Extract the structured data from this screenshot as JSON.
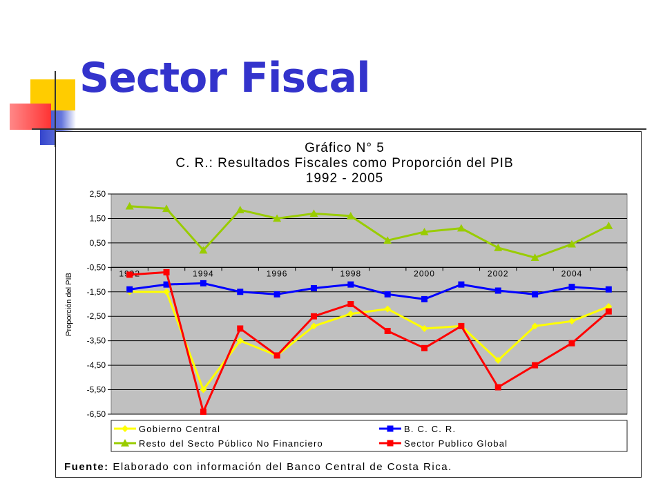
{
  "slide": {
    "title": "Sector Fiscal"
  },
  "chart_data": {
    "type": "line",
    "title": "Gráfico N° 5",
    "subtitle": "C. R.: Resultados Fiscales como Proporción del PIB",
    "period": "1992 - 2005",
    "ylabel": "Proporción del PIB",
    "xlabel": "",
    "ylim": [
      -6.5,
      2.5
    ],
    "yticks": [
      "2,50",
      "1,50",
      "0,50",
      "-0,50",
      "-1,50",
      "-2,50",
      "-3,50",
      "-4,50",
      "-5,50",
      "-6,50"
    ],
    "x": [
      1992,
      1993,
      1994,
      1995,
      1996,
      1997,
      1998,
      1999,
      2000,
      2001,
      2002,
      2003,
      2004,
      2005
    ],
    "xticks": [
      "1992",
      "1994",
      "1996",
      "1998",
      "2000",
      "2002",
      "2004"
    ],
    "grid": true,
    "legend_position": "bottom",
    "series": [
      {
        "name": "Gobierno Central",
        "color": "#ffff00",
        "marker": "diamond",
        "values": [
          -1.5,
          -1.5,
          -5.5,
          -3.5,
          -4.1,
          -2.9,
          -2.4,
          -2.2,
          -3.0,
          -2.9,
          -4.3,
          -2.9,
          -2.7,
          -2.1
        ]
      },
      {
        "name": "B. C. C. R.",
        "color": "#0000ff",
        "marker": "square",
        "values": [
          -1.4,
          -1.2,
          -1.15,
          -1.5,
          -1.6,
          -1.35,
          -1.2,
          -1.6,
          -1.8,
          -1.2,
          -1.45,
          -1.6,
          -1.3,
          -1.4
        ]
      },
      {
        "name": "Resto del Secto Público No Financiero",
        "color": "#99cc00",
        "marker": "triangle",
        "values": [
          2.0,
          1.9,
          0.2,
          1.85,
          1.5,
          1.7,
          1.6,
          0.6,
          0.95,
          1.1,
          0.3,
          -0.1,
          0.45,
          1.2
        ]
      },
      {
        "name": "Sector Publico Global",
        "color": "#ff0000",
        "marker": "square",
        "values": [
          -0.8,
          -0.7,
          -6.4,
          -3.0,
          -4.1,
          -2.5,
          -2.0,
          -3.1,
          -3.8,
          -2.9,
          -5.4,
          -4.5,
          -3.6,
          -2.3
        ]
      }
    ],
    "source_label": "Fuente:",
    "source_text": "Elaborado con información del Banco Central de Costa Rica."
  }
}
